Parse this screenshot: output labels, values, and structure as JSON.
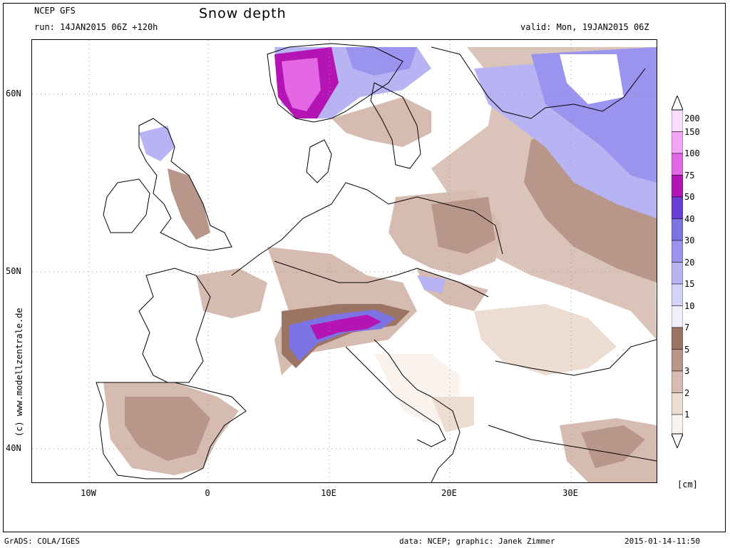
{
  "header": {
    "model": "NCEP GFS",
    "run": "run: 14JAN2015 06Z +120h",
    "title": "Snow depth",
    "valid": "valid: Mon, 19JAN2015 06Z"
  },
  "axes": {
    "lon_labels": [
      "10W",
      "0",
      "10E",
      "20E",
      "30E"
    ],
    "lat_labels": [
      "60N",
      "50N",
      "40N"
    ]
  },
  "credit": "(c) www.modellzentrale.de",
  "legend": {
    "levels": [
      "200",
      "150",
      "100",
      "75",
      "50",
      "40",
      "30",
      "20",
      "15",
      "10",
      "7",
      "5",
      "3",
      "2",
      "1"
    ],
    "colors": [
      "#fcdcfc",
      "#f4a4f4",
      "#e468e4",
      "#b414b4",
      "#6a3cd8",
      "#7c74e4",
      "#9a94ee",
      "#b8b4f4",
      "#d4d2f8",
      "#f0eefc",
      "#9c7464",
      "#b8968a",
      "#d6bcb0",
      "#ecdcd2",
      "#faf2ec"
    ],
    "unit": "[cm]"
  },
  "footer": {
    "software": "GrADS: COLA/IGES",
    "data_credit": "data: NCEP; graphic: Janek Zimmer",
    "timestamp": "2015-01-14-11:50"
  }
}
